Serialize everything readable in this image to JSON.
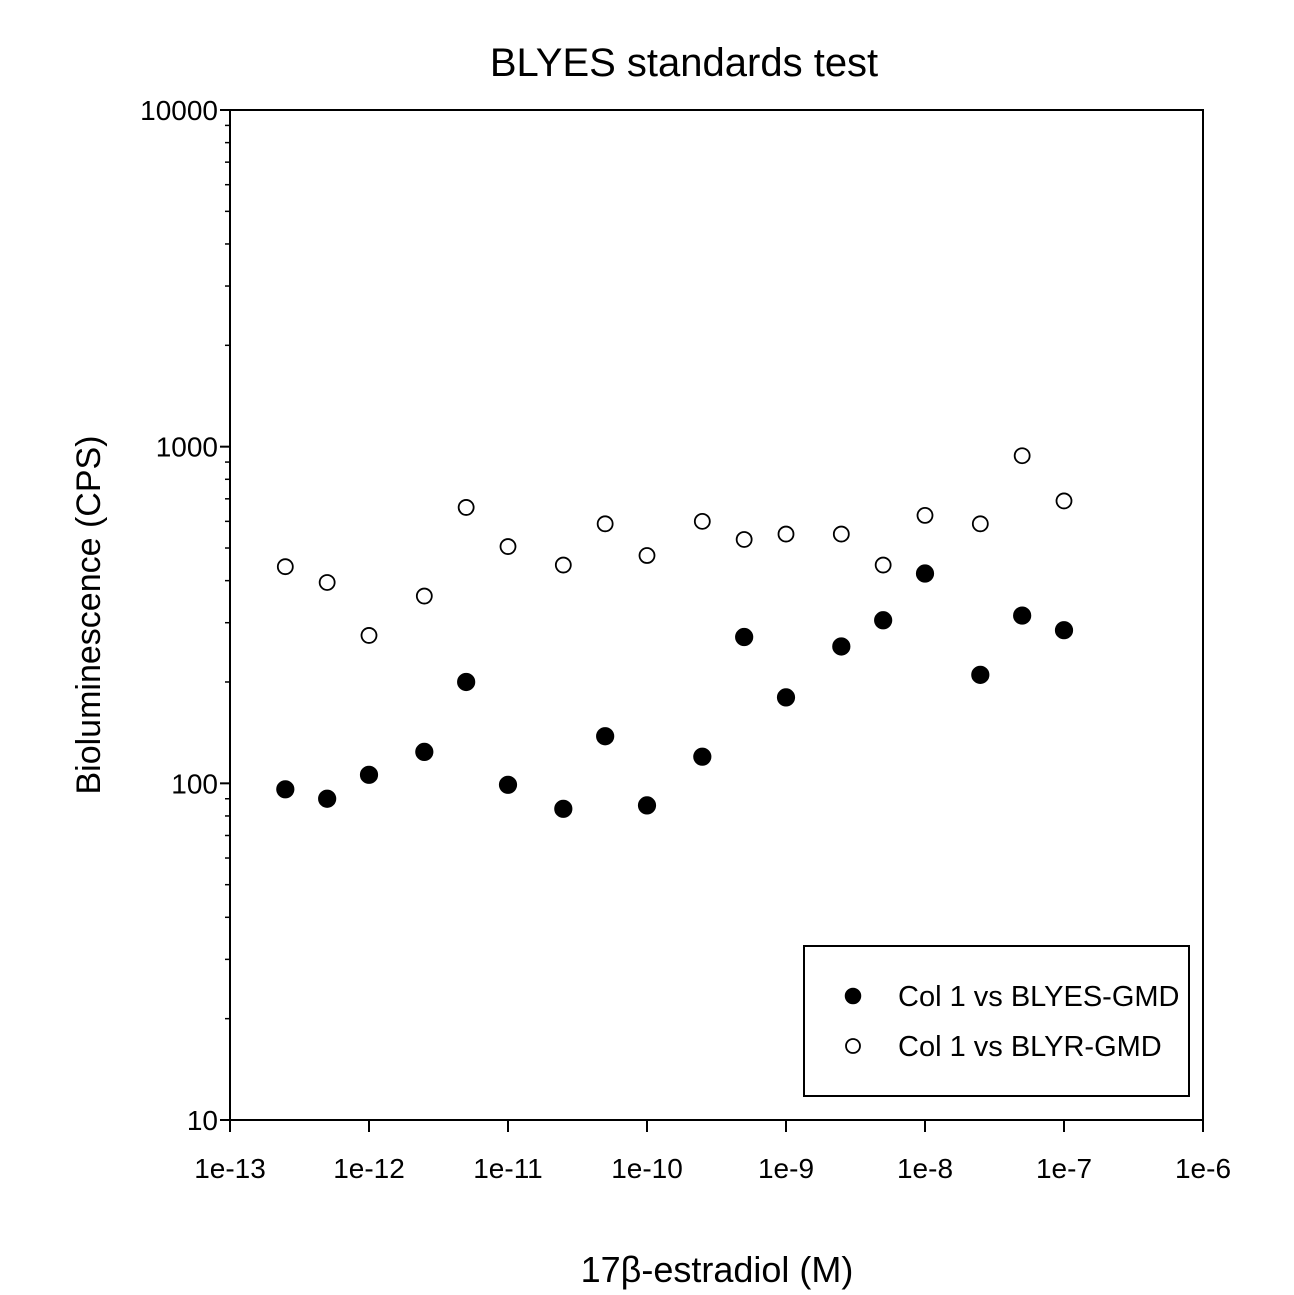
{
  "chart_data": {
    "type": "scatter",
    "title": "BLYES standards test",
    "xlabel": "17β-estradiol (M)",
    "ylabel": "Bioluminescence (CPS)",
    "x_scale": "log",
    "y_scale": "log",
    "xlim": [
      1e-13,
      1e-06
    ],
    "ylim": [
      10,
      10000
    ],
    "x_ticks": [
      1e-13,
      1e-12,
      1e-11,
      1e-10,
      1e-09,
      1e-08,
      1e-07,
      1e-06
    ],
    "x_tick_labels": [
      "1e-13",
      "1e-12",
      "1e-11",
      "1e-10",
      "1e-9",
      "1e-8",
      "1e-7",
      "1e-6"
    ],
    "y_ticks": [
      10,
      100,
      1000,
      10000
    ],
    "y_tick_labels": [
      "10",
      "100",
      "1000",
      "10000"
    ],
    "grid": false,
    "legend_position": "bottom-right",
    "x": [
      2.5e-13,
      5e-13,
      1e-12,
      2.5e-12,
      5e-12,
      1e-11,
      2.5e-11,
      5e-11,
      1e-10,
      2.5e-10,
      5e-10,
      1e-09,
      2.5e-09,
      5e-09,
      1e-08,
      2.5e-08,
      5e-08,
      1e-07
    ],
    "series": [
      {
        "name": "Col 1 vs BLYES-GMD",
        "marker": "filled-circle",
        "color": "#000000",
        "values": [
          96,
          90,
          106,
          124,
          200,
          99,
          84,
          138,
          86,
          120,
          272,
          180,
          255,
          305,
          420,
          210,
          315,
          285
        ]
      },
      {
        "name": "Col 1 vs BLYR-GMD",
        "marker": "open-circle",
        "color": "#000000",
        "values": [
          440,
          395,
          275,
          360,
          660,
          505,
          445,
          590,
          475,
          600,
          530,
          550,
          550,
          445,
          625,
          590,
          940,
          690
        ]
      }
    ]
  }
}
